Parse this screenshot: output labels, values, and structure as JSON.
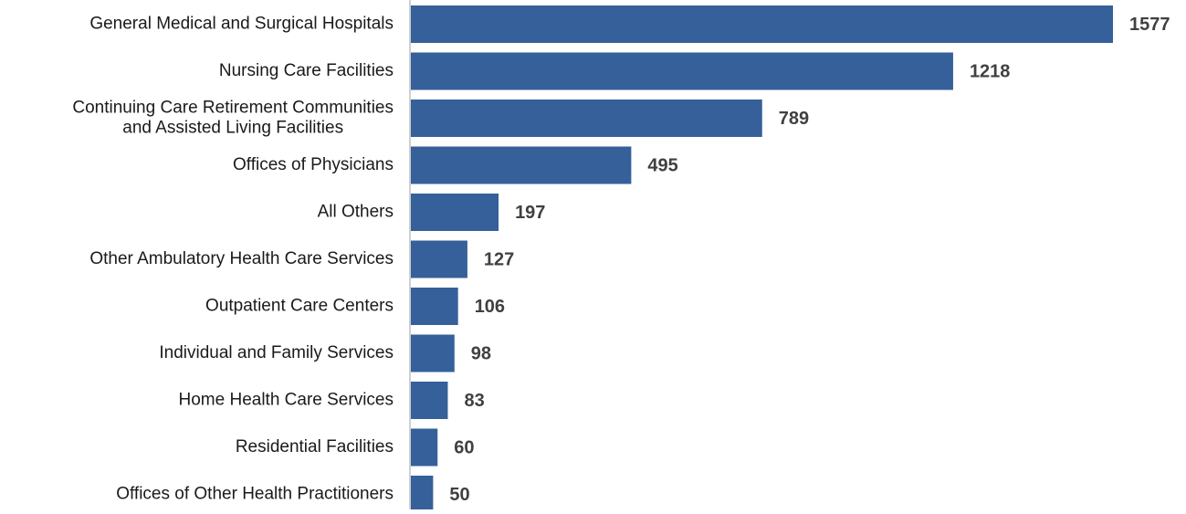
{
  "chart_data": {
    "type": "bar",
    "orientation": "horizontal",
    "title": "",
    "xlabel": "",
    "ylabel": "",
    "grid": false,
    "legend": "none",
    "bar_color": "#35609A",
    "axis_color": "#bfbfbf",
    "categories": [
      [
        "General Medical and Surgical Hospitals"
      ],
      [
        "Nursing Care Facilities"
      ],
      [
        "Continuing Care Retirement Communities",
        "and Assisted Living Facilities"
      ],
      [
        "Offices of Physicians"
      ],
      [
        "All Others"
      ],
      [
        "Other Ambulatory Health Care Services"
      ],
      [
        "Outpatient Care Centers"
      ],
      [
        "Individual and Family Services"
      ],
      [
        "Home Health Care Services"
      ],
      [
        "Residential Facilities"
      ],
      [
        "Offices of Other Health Practitioners"
      ]
    ],
    "values": [
      1577,
      1218,
      789,
      495,
      197,
      127,
      106,
      98,
      83,
      60,
      50
    ],
    "data_labels": [
      "1577",
      "1218",
      "789",
      "495",
      "197",
      "127",
      "106",
      "98",
      "83",
      "60",
      "50"
    ]
  }
}
